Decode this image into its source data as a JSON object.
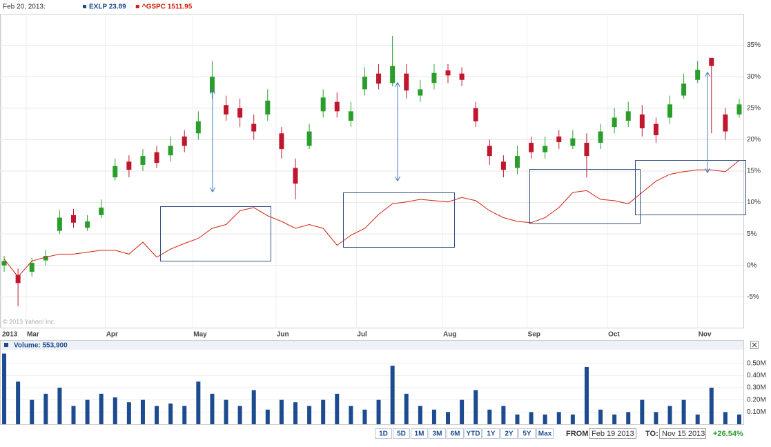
{
  "chart_data": [
    {
      "type": "candlestick",
      "legend_date": "Feb 20, 2013:",
      "watermark": "© 2013 Yahoo! Inc.",
      "xlim": [
        -0.3,
        53.3
      ],
      "xticks": [
        {
          "value": -0.2,
          "label": "2013"
        },
        {
          "value": 1.59,
          "label": "Mar"
        },
        {
          "value": 7.3,
          "label": "Apr"
        },
        {
          "value": 13.6,
          "label": "May"
        },
        {
          "value": 19.6,
          "label": "Jun"
        },
        {
          "value": 25.4,
          "label": "Jul"
        },
        {
          "value": 31.6,
          "label": "Aug"
        },
        {
          "value": 37.7,
          "label": "Sep"
        },
        {
          "value": 43.5,
          "label": "Oct"
        },
        {
          "value": 50.0,
          "label": "Nov"
        }
      ],
      "ylim": [
        -10,
        40
      ],
      "yticks": [
        {
          "value": -5,
          "label": "-5%"
        },
        {
          "value": 0,
          "label": "0%"
        },
        {
          "value": 5,
          "label": "5%"
        },
        {
          "value": 10,
          "label": "10%"
        },
        {
          "value": 15,
          "label": "15%"
        },
        {
          "value": 20,
          "label": "20%"
        },
        {
          "value": 25,
          "label": "25%"
        },
        {
          "value": 30,
          "label": "30%"
        },
        {
          "value": 35,
          "label": "35%"
        }
      ],
      "grid": true,
      "series": [
        {
          "name": "EXLP 23.89",
          "type": "candlestick",
          "legend_color": "#1d4b8f",
          "up_color": "#2a9e2a",
          "down_color": "#c1172e",
          "open": [
            0,
            -1.5,
            -1.0,
            0.8,
            5.5,
            8.0,
            6.0,
            8.0,
            14.0,
            16.5,
            16.0,
            18.0,
            17.5,
            20.5,
            21.0,
            27.5,
            25.5,
            25.0,
            22.5,
            24.0,
            21.0,
            15.5,
            19.0,
            24.5,
            26.0,
            23.0,
            28.0,
            30.5,
            29.0,
            30.5,
            27.0,
            29.0,
            31.0,
            30.5,
            25.0,
            19.0,
            16.5,
            15.5,
            19.5,
            18.0,
            20.5,
            19.0,
            19.5,
            19.5,
            22.0,
            23.0,
            24.0,
            22.5,
            23.5,
            27.0,
            29.5,
            33.0,
            24.0,
            24.0
          ],
          "high": [
            1.5,
            -0.5,
            1.2,
            2.5,
            8.8,
            9.0,
            8.0,
            10.5,
            17.0,
            17.5,
            18.5,
            19.0,
            20.5,
            21.5,
            24.5,
            32.5,
            27.0,
            26.5,
            24.0,
            28.0,
            22.0,
            17.0,
            22.5,
            28.0,
            27.5,
            26.0,
            31.5,
            32.0,
            36.5,
            32.0,
            29.5,
            32.0,
            32.0,
            31.5,
            26.0,
            20.0,
            17.5,
            19.0,
            20.5,
            20.5,
            21.5,
            21.5,
            21.0,
            22.5,
            25.0,
            26.0,
            25.5,
            23.5,
            27.0,
            30.5,
            32.5,
            33.0,
            25.0,
            26.5
          ],
          "low": [
            -1.0,
            -6.5,
            -1.8,
            0,
            5.0,
            6.0,
            5.5,
            7.5,
            13.5,
            14.0,
            15.0,
            15.5,
            16.5,
            18.0,
            20.0,
            26.5,
            23.0,
            22.0,
            20.0,
            23.0,
            17.0,
            10.5,
            18.5,
            23.5,
            23.5,
            22.0,
            27.0,
            28.0,
            28.5,
            26.5,
            26.0,
            28.0,
            29.0,
            28.5,
            22.0,
            16.0,
            14.0,
            14.5,
            17.0,
            17.0,
            18.5,
            18.5,
            14.0,
            18.5,
            21.0,
            22.0,
            20.5,
            19.5,
            22.5,
            26.5,
            29.0,
            21.0,
            20.0,
            23.5
          ],
          "close": [
            0.7,
            -2.8,
            0.4,
            1.5,
            7.6,
            6.8,
            7.0,
            9.2,
            15.8,
            15.2,
            17.4,
            16.3,
            19.0,
            19.0,
            22.9,
            30.0,
            24.0,
            23.5,
            21.3,
            26.2,
            18.5,
            13.0,
            21.3,
            26.7,
            24.5,
            24.5,
            30.0,
            28.9,
            31.7,
            27.8,
            28.0,
            30.6,
            30.2,
            29.5,
            22.9,
            17.4,
            15.2,
            17.4,
            18.0,
            19.0,
            19.6,
            20.2,
            17.4,
            21.3,
            23.5,
            24.5,
            21.8,
            20.7,
            25.6,
            28.9,
            31.1,
            31.7,
            21.3,
            25.6
          ]
        },
        {
          "name": "^GSPC 1511.95",
          "type": "line",
          "color": "#d4210f",
          "values": [
            1.0,
            -1.8,
            0.7,
            1.3,
            1.8,
            1.8,
            2.1,
            2.4,
            2.4,
            1.8,
            3.7,
            1.3,
            2.6,
            3.5,
            4.3,
            5.9,
            6.5,
            8.7,
            9.2,
            7.9,
            7.0,
            5.9,
            6.5,
            5.9,
            3.2,
            4.8,
            5.9,
            8.1,
            9.8,
            10.1,
            10.5,
            10.3,
            10.1,
            10.8,
            10.3,
            8.7,
            7.6,
            7.0,
            6.8,
            7.6,
            9.2,
            11.6,
            11.9,
            10.5,
            10.3,
            9.8,
            11.6,
            13.4,
            14.5,
            14.9,
            15.2,
            15.2,
            14.9,
            16.7
          ]
        }
      ]
    },
    {
      "type": "bar",
      "title": "Volume: 553,900",
      "color": "#1d4b8f",
      "xlim": [
        -0.3,
        53.3
      ],
      "ylim": [
        0,
        0.6
      ],
      "yticks": [
        {
          "value": 0.1,
          "label": "0.10M"
        },
        {
          "value": 0.2,
          "label": "0.20M"
        },
        {
          "value": 0.3,
          "label": "0.30M"
        },
        {
          "value": 0.4,
          "label": "0.40M"
        },
        {
          "value": 0.5,
          "label": "0.50M"
        }
      ],
      "values": [
        0.58,
        0.35,
        0.2,
        0.25,
        0.3,
        0.15,
        0.2,
        0.25,
        0.22,
        0.18,
        0.2,
        0.15,
        0.17,
        0.15,
        0.35,
        0.25,
        0.2,
        0.15,
        0.28,
        0.12,
        0.2,
        0.18,
        0.15,
        0.2,
        0.25,
        0.15,
        0.12,
        0.2,
        0.48,
        0.25,
        0.15,
        0.12,
        0.1,
        0.2,
        0.28,
        0.12,
        0.15,
        0.08,
        0.1,
        0.08,
        0.1,
        0.08,
        0.47,
        0.12,
        0.08,
        0.1,
        0.2,
        0.1,
        0.15,
        0.2,
        0.08,
        0.3,
        0.1,
        0.08
      ]
    }
  ],
  "controls": {
    "ranges": [
      "1D",
      "5D",
      "1M",
      "3M",
      "6M",
      "YTD",
      "1Y",
      "2Y",
      "5Y",
      "Max"
    ],
    "from_label": "FROM:",
    "from": "Feb 19 2013",
    "to_label": "TO:",
    "to": "Nov 15 2013",
    "change": "+26.54%"
  }
}
